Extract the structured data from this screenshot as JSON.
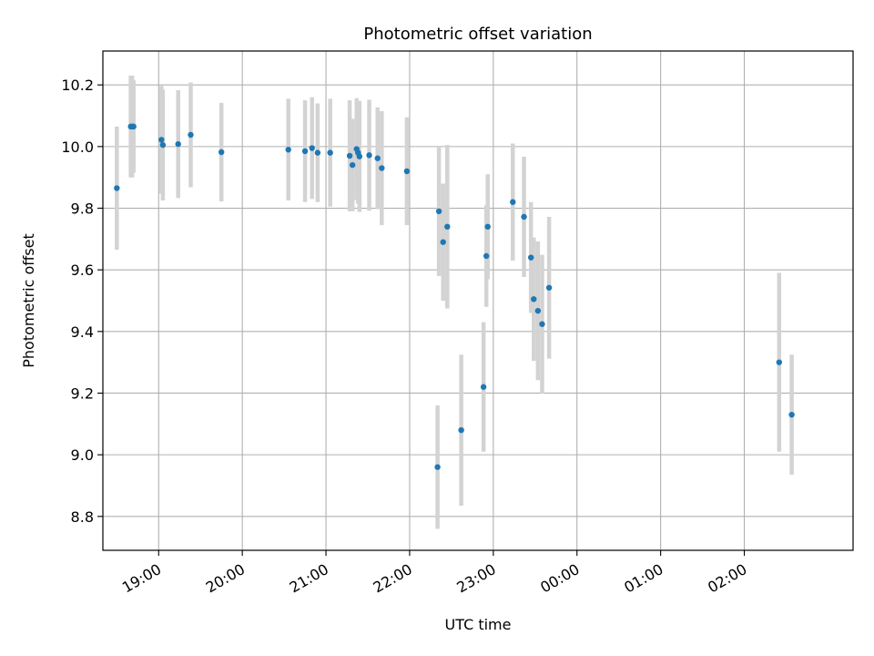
{
  "chart_data": {
    "type": "scatter",
    "title": "Photometric offset variation",
    "xlabel": "UTC time",
    "ylabel": "Photometric offset",
    "x_unit": "UTC datetime",
    "xlim": [
      "18:20",
      "03:18"
    ],
    "ylim": [
      8.69,
      10.31
    ],
    "x_ticks": [
      "19:00",
      "20:00",
      "21:00",
      "22:00",
      "23:00",
      "00:00",
      "01:00",
      "02:00"
    ],
    "y_ticks": [
      8.8,
      9.0,
      9.2,
      9.4,
      9.6,
      9.8,
      10.0,
      10.2
    ],
    "grid": true,
    "error_bar_color": "#d3d3d3",
    "point_color": "#1f77b4",
    "series": [
      {
        "points": [
          {
            "t": "18:30",
            "y": 9.865,
            "err": 0.2
          },
          {
            "t": "18:40",
            "y": 10.065,
            "err": 0.165
          },
          {
            "t": "18:41",
            "y": 10.065,
            "err": 0.165
          },
          {
            "t": "18:42",
            "y": 10.065,
            "err": 0.15
          },
          {
            "t": "19:02",
            "y": 10.022,
            "err": 0.175
          },
          {
            "t": "19:03",
            "y": 10.005,
            "err": 0.18
          },
          {
            "t": "19:14",
            "y": 10.008,
            "err": 0.175
          },
          {
            "t": "19:23",
            "y": 10.038,
            "err": 0.17
          },
          {
            "t": "19:45",
            "y": 9.982,
            "err": 0.16
          },
          {
            "t": "20:33",
            "y": 9.99,
            "err": 0.165
          },
          {
            "t": "20:45",
            "y": 9.985,
            "err": 0.165
          },
          {
            "t": "20:50",
            "y": 9.995,
            "err": 0.165
          },
          {
            "t": "20:54",
            "y": 9.98,
            "err": 0.16
          },
          {
            "t": "21:03",
            "y": 9.98,
            "err": 0.175
          },
          {
            "t": "21:17",
            "y": 9.97,
            "err": 0.18
          },
          {
            "t": "21:19",
            "y": 9.94,
            "err": 0.15
          },
          {
            "t": "21:22",
            "y": 9.992,
            "err": 0.165
          },
          {
            "t": "21:23",
            "y": 9.98,
            "err": 0.165
          },
          {
            "t": "21:24",
            "y": 9.968,
            "err": 0.18
          },
          {
            "t": "21:31",
            "y": 9.972,
            "err": 0.18
          },
          {
            "t": "21:37",
            "y": 9.962,
            "err": 0.165
          },
          {
            "t": "21:40",
            "y": 9.93,
            "err": 0.185
          },
          {
            "t": "21:58",
            "y": 9.92,
            "err": 0.175
          },
          {
            "t": "22:20",
            "y": 8.96,
            "err": 0.2
          },
          {
            "t": "22:21",
            "y": 9.79,
            "err": 0.21
          },
          {
            "t": "22:24",
            "y": 9.69,
            "err": 0.19
          },
          {
            "t": "22:27",
            "y": 9.74,
            "err": 0.265
          },
          {
            "t": "22:37",
            "y": 9.08,
            "err": 0.245
          },
          {
            "t": "22:53",
            "y": 9.22,
            "err": 0.21
          },
          {
            "t": "22:55",
            "y": 9.645,
            "err": 0.165
          },
          {
            "t": "22:56",
            "y": 9.74,
            "err": 0.17
          },
          {
            "t": "23:14",
            "y": 9.82,
            "err": 0.19
          },
          {
            "t": "23:22",
            "y": 9.772,
            "err": 0.195
          },
          {
            "t": "23:27",
            "y": 9.64,
            "err": 0.18
          },
          {
            "t": "23:29",
            "y": 9.505,
            "err": 0.2
          },
          {
            "t": "23:32",
            "y": 9.467,
            "err": 0.225
          },
          {
            "t": "23:35",
            "y": 9.424,
            "err": 0.225
          },
          {
            "t": "23:40",
            "y": 9.542,
            "err": 0.23
          },
          {
            "t": "02:25",
            "y": 9.3,
            "err": 0.29
          },
          {
            "t": "02:34",
            "y": 9.13,
            "err": 0.195
          }
        ]
      }
    ]
  }
}
